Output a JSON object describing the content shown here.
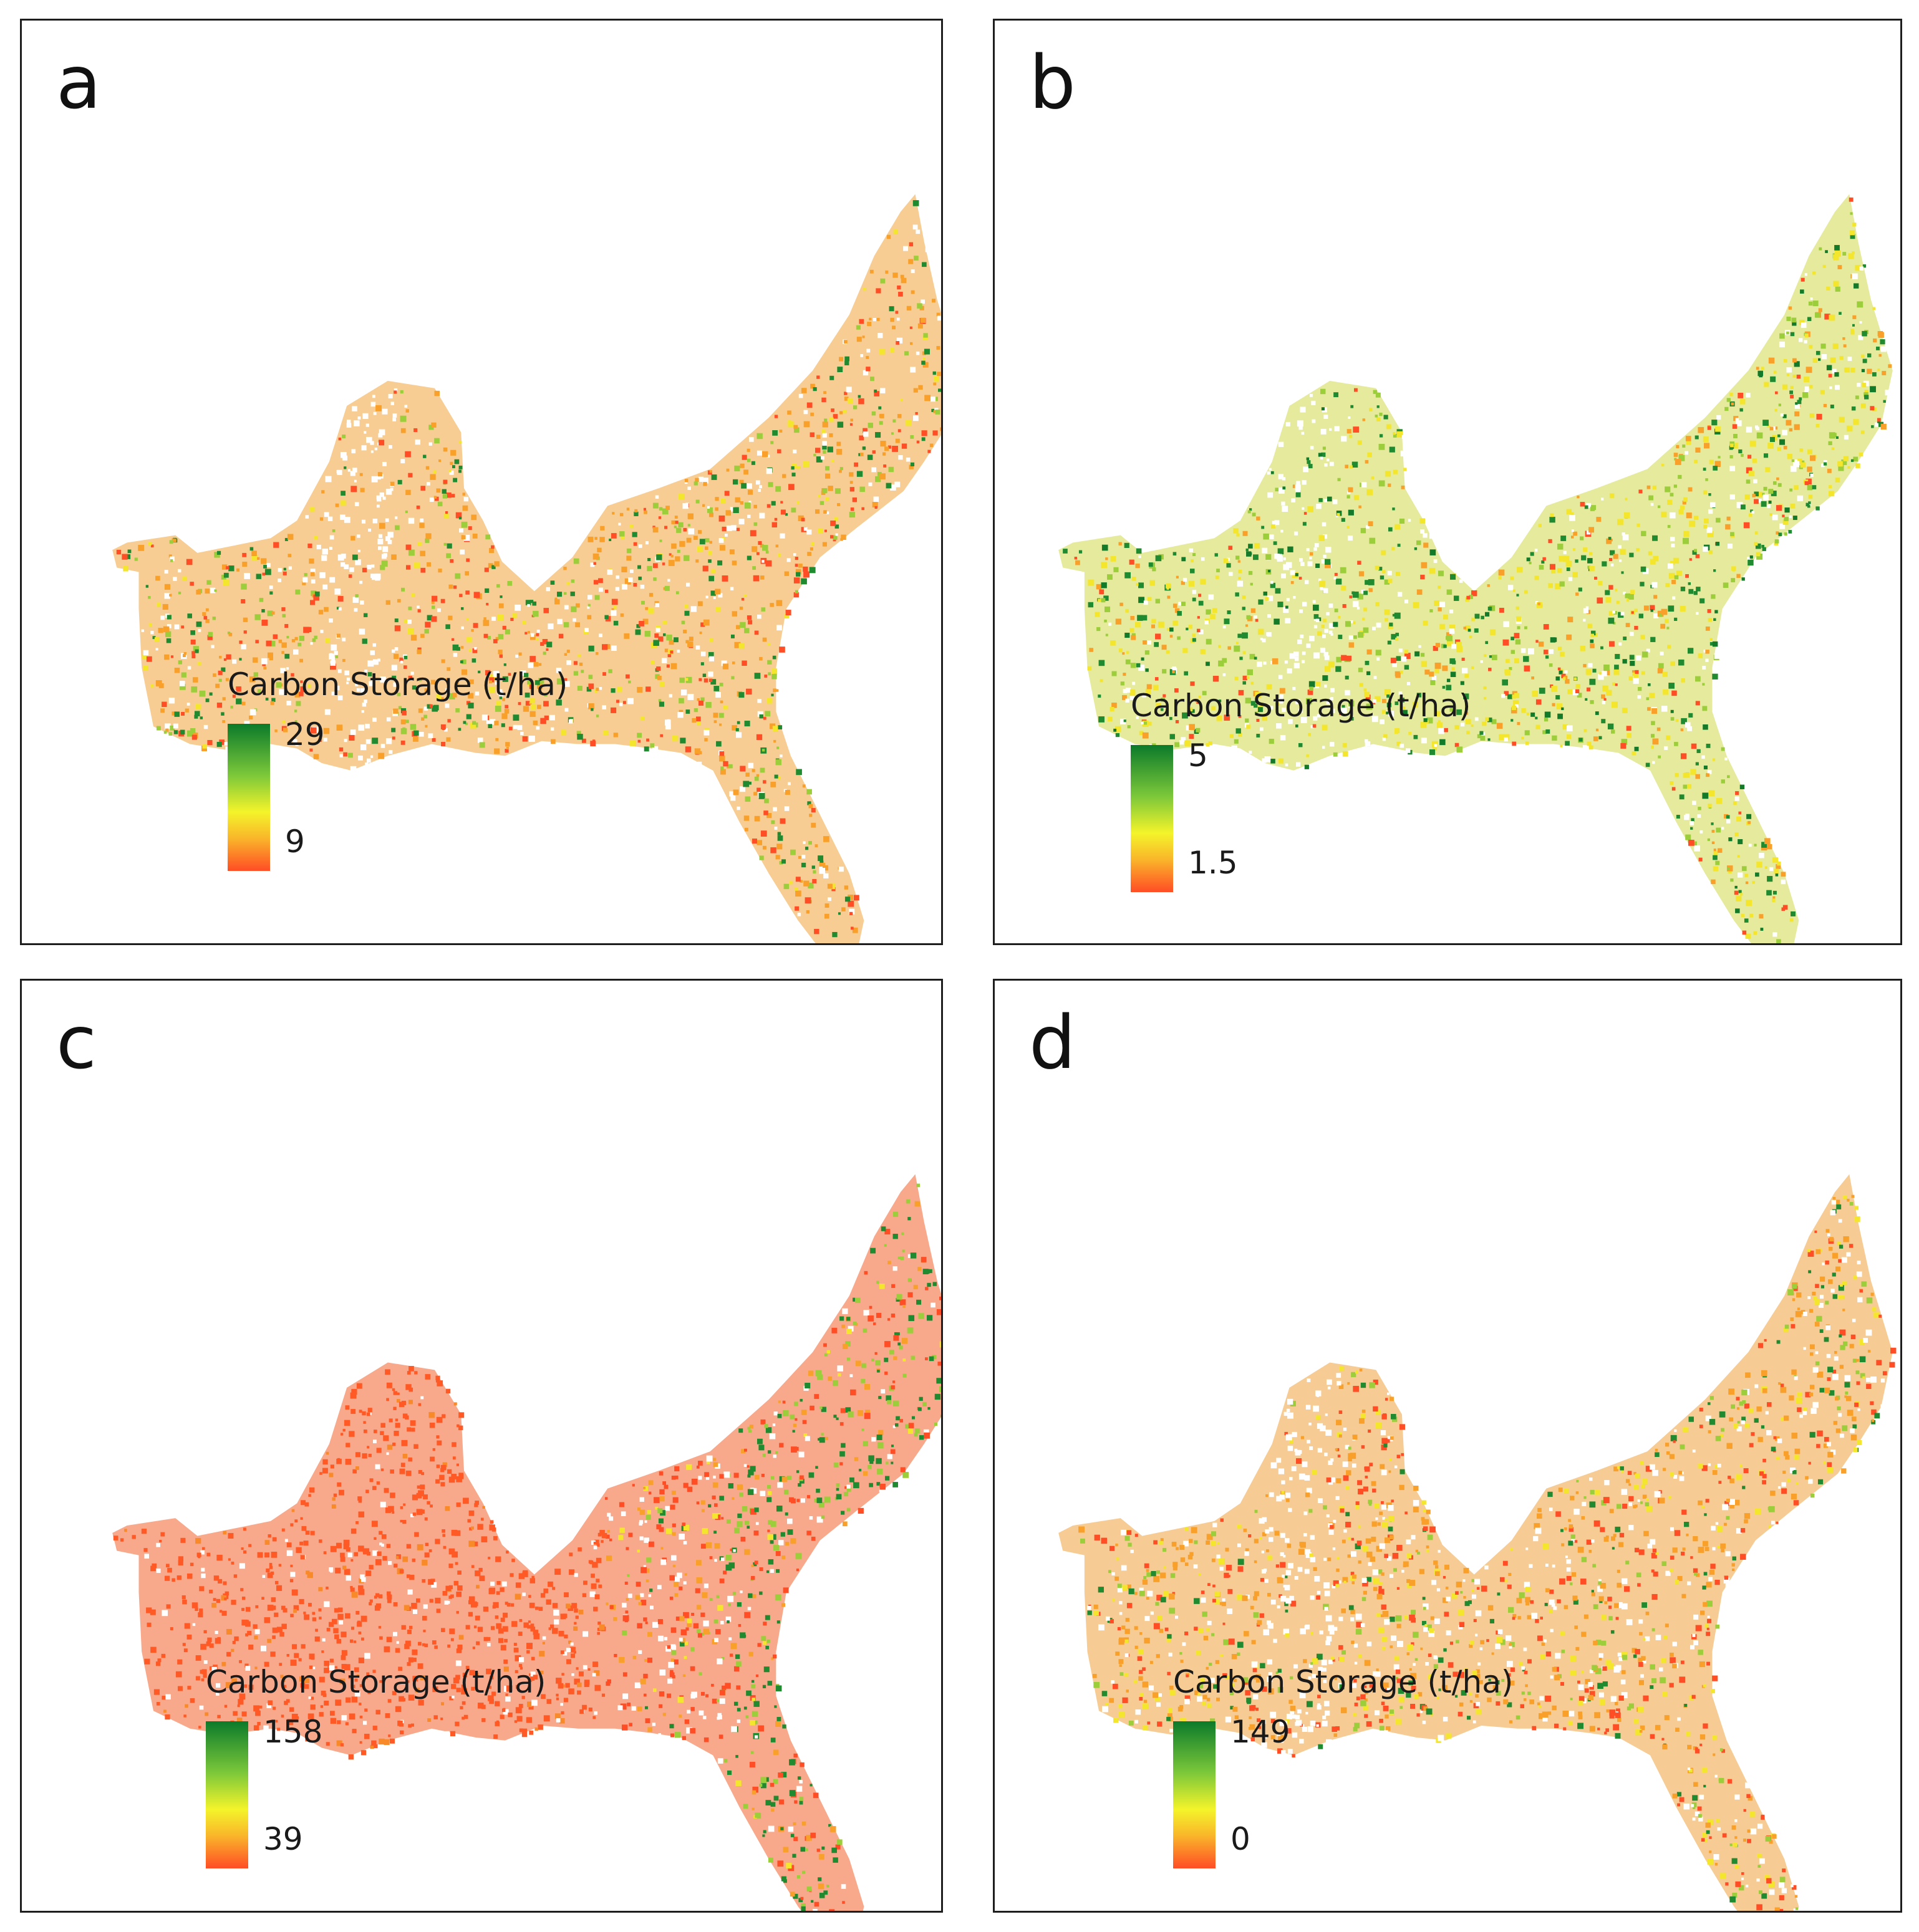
{
  "panels": [
    {
      "id": "a",
      "letter": "a",
      "legend": {
        "title": "Carbon Storage (t/ha)",
        "max": "29",
        "min": "9"
      },
      "scheme": {
        "base": "#f0a43a",
        "wMix": [
          0.24,
          0.3,
          0.1,
          0.18,
          0.18
        ],
        "emphasis": "none"
      }
    },
    {
      "id": "b",
      "letter": "b",
      "legend": {
        "title": "Carbon Storage (t/ha)",
        "max": "5",
        "min": "1.5"
      },
      "scheme": {
        "base": "#cfd84a",
        "wMix": [
          0.1,
          0.15,
          0.35,
          0.2,
          0.2
        ],
        "emphasis": "rivers-green"
      }
    },
    {
      "id": "c",
      "letter": "c",
      "legend": {
        "title": "Carbon Storage (t/ha)",
        "max": "158",
        "min": "39"
      },
      "scheme": {
        "base": "#f4632c",
        "wMix": [
          0.5,
          0.25,
          0.08,
          0.1,
          0.07
        ],
        "emphasis": "east-gradient"
      }
    },
    {
      "id": "d",
      "letter": "d",
      "legend": {
        "title": "Carbon Storage (t/ha)",
        "max": "149",
        "min": "0"
      },
      "scheme": {
        "base": "#eea23d",
        "wMix": [
          0.25,
          0.35,
          0.18,
          0.12,
          0.1
        ],
        "emphasis": "none"
      }
    }
  ],
  "colors": {
    "ramp_top": "#0b7a2a",
    "ramp_mid_green": "#7cc83a",
    "ramp_mid": "#f4f42a",
    "ramp_mid_orange": "#f9b52a",
    "ramp_bottom": "#ff4d25"
  }
}
